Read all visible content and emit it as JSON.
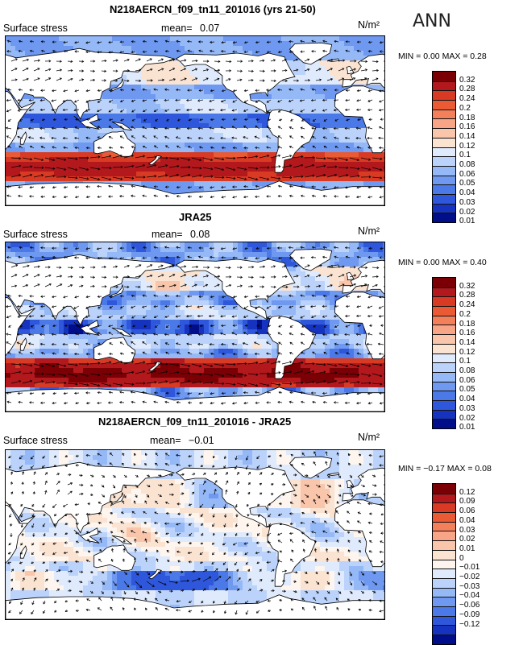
{
  "season_label": "ANN",
  "colors": {
    "abs_scale": [
      "#7b0006",
      "#b3181c",
      "#d83a23",
      "#ea5a35",
      "#f3805a",
      "#f7a487",
      "#f9c6ac",
      "#fbe3d2",
      "#dfeafc",
      "#bbd3fb",
      "#95b8f7",
      "#6f99f0",
      "#4c79e8",
      "#2f57db",
      "#1633bf",
      "#000e8a"
    ],
    "diff_scale": [
      "#7b0006",
      "#b3181c",
      "#d83a23",
      "#ea5a35",
      "#f3805a",
      "#f7a487",
      "#f9c6ac",
      "#fbe3d2",
      "#fdf5ee",
      "#dfeafc",
      "#bbd3fb",
      "#95b8f7",
      "#6f99f0",
      "#4c79e8",
      "#2f57db",
      "#1633bf",
      "#000e8a"
    ],
    "land": "#ffffff"
  },
  "chart_data": [
    {
      "type": "heatmap",
      "title": "N218AERCN_f09_tn11_201016 (yrs 21-50)",
      "left_label": "Surface stress",
      "mean_label": "mean=",
      "mean_value": "0.07",
      "units": "N/m²",
      "stats": "MIN =   0.00  MAX =    0.28",
      "colorbar_ticks": [
        "0.32",
        "0.28",
        "0.24",
        "0.2",
        "0.18",
        "0.16",
        "0.14",
        "0.12",
        "0.1",
        "0.08",
        "0.06",
        "0.05",
        "0.04",
        "0.03",
        "0.02",
        "0.01"
      ],
      "field": "model"
    },
    {
      "type": "heatmap",
      "title": "JRA25",
      "left_label": "Surface stress",
      "mean_label": "mean=",
      "mean_value": "0.08",
      "units": "N/m²",
      "stats": "MIN =   0.00  MAX =    0.40",
      "colorbar_ticks": [
        "0.32",
        "0.28",
        "0.24",
        "0.2",
        "0.18",
        "0.16",
        "0.14",
        "0.12",
        "0.1",
        "0.08",
        "0.06",
        "0.05",
        "0.04",
        "0.03",
        "0.02",
        "0.01"
      ],
      "field": "obs"
    },
    {
      "type": "heatmap",
      "title": "N218AERCN_f09_tn11_201016 - JRA25",
      "left_label": "Surface stress",
      "mean_label": "mean=",
      "mean_value": "−0.01",
      "units": "N/m²",
      "stats": "MIN =  −0.17  MAX =    0.08",
      "colorbar_ticks": [
        "0.12",
        "0.09",
        "0.06",
        "0.04",
        "0.03",
        "0.02",
        "0.01",
        "0",
        "−0.01",
        "−0.02",
        "−0.03",
        "−0.04",
        "−0.06",
        "−0.09",
        "−0.12"
      ],
      "field": "diff"
    }
  ]
}
